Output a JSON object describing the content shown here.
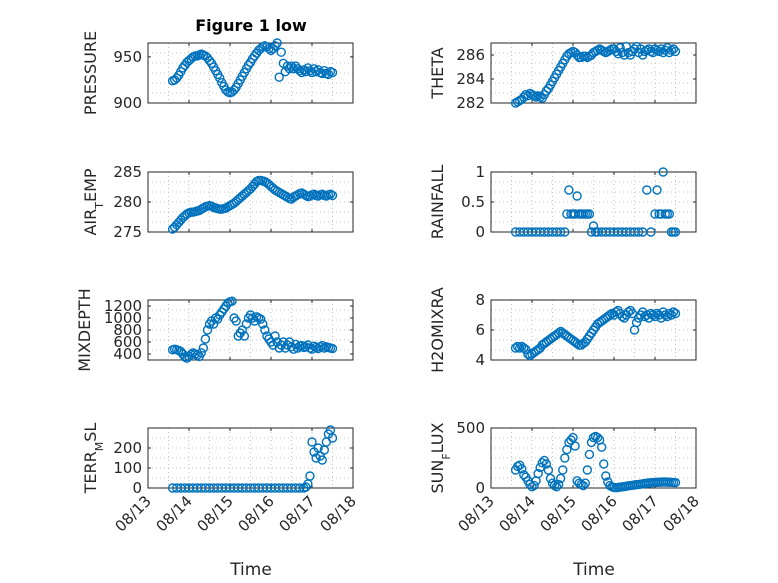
{
  "figure_title": "Figure 1 low",
  "colors": {
    "marker": "#0072bd",
    "axis": "#262626",
    "grid": "#b5b5b5"
  },
  "x_axis": {
    "label": "Time",
    "range": [
      0,
      5
    ],
    "ticks": [
      0,
      1,
      2,
      3,
      4,
      5
    ],
    "tick_labels": [
      "08/13",
      "08/14",
      "08/15",
      "08/16",
      "08/17",
      "08/18"
    ]
  },
  "chart_data": [
    {
      "type": "scatter",
      "ylabel": "PRESSURE",
      "ylim": [
        900,
        965
      ],
      "yticks": [
        900,
        950
      ],
      "ytick_labels": [
        "900",
        "950"
      ],
      "grid": true,
      "x": [
        0.6,
        0.65,
        0.7,
        0.75,
        0.8,
        0.85,
        0.9,
        0.95,
        1.0,
        1.05,
        1.1,
        1.15,
        1.2,
        1.25,
        1.3,
        1.35,
        1.4,
        1.45,
        1.5,
        1.55,
        1.6,
        1.65,
        1.7,
        1.75,
        1.8,
        1.85,
        1.9,
        1.95,
        2.0,
        2.05,
        2.1,
        2.15,
        2.2,
        2.25,
        2.3,
        2.35,
        2.4,
        2.45,
        2.5,
        2.55,
        2.6,
        2.65,
        2.7,
        2.75,
        2.8,
        2.85,
        2.9,
        2.95,
        3.0,
        3.05,
        3.1,
        3.15,
        3.2,
        3.25,
        3.3,
        3.35,
        3.4,
        3.45,
        3.5,
        3.55,
        3.6,
        3.65,
        3.7,
        3.75,
        3.8,
        3.85,
        3.9,
        3.95,
        4.0,
        4.05,
        4.1,
        4.15,
        4.2,
        4.25,
        4.3,
        4.35,
        4.4,
        4.45,
        4.5
      ],
      "y": [
        924,
        925,
        927,
        930,
        934,
        938,
        941,
        944,
        946,
        948,
        950,
        951,
        951,
        952,
        953,
        952,
        951,
        949,
        946,
        943,
        939,
        935,
        931,
        927,
        922,
        918,
        914,
        912,
        911,
        912,
        914,
        917,
        921,
        925,
        929,
        933,
        937,
        941,
        944,
        948,
        951,
        954,
        957,
        959,
        961,
        962,
        961,
        959,
        957,
        959,
        962,
        965,
        928,
        955,
        943,
        934,
        940,
        937,
        940,
        937,
        940,
        937,
        935,
        933,
        936,
        934,
        938,
        935,
        933,
        937,
        934,
        936,
        933,
        932,
        935,
        932,
        931,
        934,
        933
      ]
    },
    {
      "type": "scatter",
      "ylabel": "THETA",
      "ylim": [
        282,
        287
      ],
      "yticks": [
        282,
        284,
        286
      ],
      "ytick_labels": [
        "282",
        "284",
        "286"
      ],
      "grid": true,
      "x": [
        0.6,
        0.65,
        0.7,
        0.75,
        0.8,
        0.85,
        0.9,
        0.95,
        1.0,
        1.05,
        1.1,
        1.15,
        1.2,
        1.25,
        1.3,
        1.35,
        1.4,
        1.45,
        1.5,
        1.55,
        1.6,
        1.65,
        1.7,
        1.75,
        1.8,
        1.85,
        1.9,
        1.95,
        2.0,
        2.05,
        2.1,
        2.15,
        2.2,
        2.25,
        2.3,
        2.35,
        2.4,
        2.45,
        2.5,
        2.55,
        2.6,
        2.65,
        2.7,
        2.75,
        2.8,
        2.85,
        2.9,
        2.95,
        3.0,
        3.05,
        3.1,
        3.15,
        3.2,
        3.25,
        3.3,
        3.35,
        3.4,
        3.45,
        3.5,
        3.55,
        3.6,
        3.65,
        3.7,
        3.75,
        3.8,
        3.85,
        3.9,
        3.95,
        4.0,
        4.05,
        4.1,
        4.15,
        4.2,
        4.25,
        4.3,
        4.35,
        4.4,
        4.45,
        4.5
      ],
      "y": [
        282,
        282.1,
        282.2,
        282.3,
        282.5,
        282.7,
        282.6,
        282.8,
        282.7,
        282.6,
        282.5,
        282.6,
        282.5,
        282.4,
        282.7,
        283.0,
        283.2,
        283.5,
        283.8,
        284.1,
        284.4,
        284.7,
        285.0,
        285.3,
        285.6,
        285.9,
        286.1,
        286.2,
        286.3,
        286.2,
        286.0,
        285.8,
        285.8,
        285.9,
        285.9,
        285.8,
        285.9,
        286.0,
        286.2,
        286.3,
        286.4,
        286.5,
        286.4,
        286.3,
        286.2,
        286.3,
        286.4,
        286.5,
        286.5,
        286.3,
        286.1,
        286.6,
        286.2,
        286.0,
        286.7,
        286.2,
        286.0,
        286.3,
        286.5,
        286.7,
        286.2,
        286.5,
        286.0,
        286.3,
        286.4,
        286.5,
        286.3,
        286.2,
        286.5,
        286.4,
        286.3,
        286.5,
        286.2,
        286.4,
        286.6,
        286.2,
        286.4,
        286.5,
        286.3
      ]
    },
    {
      "type": "scatter",
      "ylabel": "AIR_TEMP",
      "ylim": [
        275,
        285
      ],
      "yticks": [
        275,
        280,
        285
      ],
      "ytick_labels": [
        "275",
        "280",
        "285"
      ],
      "grid": true,
      "x": [
        0.6,
        0.65,
        0.7,
        0.75,
        0.8,
        0.85,
        0.9,
        0.95,
        1.0,
        1.05,
        1.1,
        1.15,
        1.2,
        1.25,
        1.3,
        1.35,
        1.4,
        1.45,
        1.5,
        1.55,
        1.6,
        1.65,
        1.7,
        1.75,
        1.8,
        1.85,
        1.9,
        1.95,
        2.0,
        2.05,
        2.1,
        2.15,
        2.2,
        2.25,
        2.3,
        2.35,
        2.4,
        2.45,
        2.5,
        2.55,
        2.6,
        2.65,
        2.7,
        2.75,
        2.8,
        2.85,
        2.9,
        2.95,
        3.0,
        3.05,
        3.1,
        3.15,
        3.2,
        3.25,
        3.3,
        3.35,
        3.4,
        3.45,
        3.5,
        3.55,
        3.6,
        3.65,
        3.7,
        3.75,
        3.8,
        3.85,
        3.9,
        3.95,
        4.0,
        4.05,
        4.1,
        4.15,
        4.2,
        4.25,
        4.3,
        4.35,
        4.4,
        4.45,
        4.5
      ],
      "y": [
        275.5,
        275.8,
        276.2,
        276.6,
        277.0,
        277.4,
        277.7,
        278.0,
        278.2,
        278.3,
        278.3,
        278.4,
        278.5,
        278.6,
        278.8,
        279.0,
        279.2,
        279.3,
        279.4,
        279.3,
        279.1,
        279.0,
        278.9,
        278.8,
        278.8,
        278.9,
        279.0,
        279.2,
        279.4,
        279.6,
        279.8,
        280.1,
        280.4,
        280.7,
        281.0,
        281.3,
        281.6,
        281.9,
        282.2,
        282.6,
        283.0,
        283.4,
        283.6,
        283.6,
        283.5,
        283.4,
        283.2,
        282.9,
        282.6,
        282.3,
        282.0,
        281.8,
        281.6,
        281.4,
        281.2,
        281.0,
        280.8,
        280.6,
        280.5,
        280.8,
        281.0,
        281.2,
        281.4,
        281.5,
        281.3,
        281.1,
        280.9,
        281.0,
        281.2,
        281.3,
        281.1,
        281.0,
        281.2,
        281.3,
        281.1,
        281.0,
        281.2,
        281.3,
        281.1
      ]
    },
    {
      "type": "scatter",
      "ylabel": "RAINFALL",
      "ylim": [
        0,
        1
      ],
      "yticks": [
        0,
        0.5,
        1
      ],
      "ytick_labels": [
        "0",
        "0.5",
        "1"
      ],
      "grid": true,
      "x": [
        0.6,
        0.7,
        0.8,
        0.9,
        1.0,
        1.1,
        1.2,
        1.3,
        1.4,
        1.5,
        1.6,
        1.7,
        1.8,
        1.85,
        1.9,
        1.95,
        2.0,
        2.05,
        2.1,
        2.15,
        2.2,
        2.25,
        2.3,
        2.35,
        2.4,
        2.45,
        2.5,
        2.55,
        2.6,
        2.7,
        2.8,
        2.9,
        3.0,
        3.1,
        3.2,
        3.3,
        3.4,
        3.5,
        3.6,
        3.7,
        3.8,
        3.9,
        4.0,
        4.05,
        4.1,
        4.15,
        4.2,
        4.25,
        4.3,
        4.35,
        4.4,
        4.45,
        4.5
      ],
      "y": [
        0,
        0,
        0,
        0,
        0,
        0,
        0,
        0,
        0,
        0,
        0,
        0,
        0,
        0.3,
        0.7,
        0.3,
        0.3,
        0.3,
        0.6,
        0.3,
        0.3,
        0.3,
        0.3,
        0.3,
        0.3,
        0,
        0.1,
        0,
        0,
        0,
        0,
        0,
        0,
        0,
        0,
        0,
        0,
        0,
        0,
        0,
        0.7,
        0,
        0.3,
        0.7,
        0.3,
        0.3,
        1.0,
        0.3,
        0.3,
        0.3,
        0,
        0,
        0
      ]
    },
    {
      "type": "scatter",
      "ylabel": "MIXDEPTH",
      "ylim": [
        300,
        1300
      ],
      "yticks": [
        400,
        600,
        800,
        1000,
        1200
      ],
      "ytick_labels": [
        "400",
        "600",
        "800",
        "1000",
        "1200"
      ],
      "grid": true,
      "x": [
        0.6,
        0.65,
        0.7,
        0.75,
        0.8,
        0.85,
        0.9,
        0.95,
        1.0,
        1.05,
        1.1,
        1.15,
        1.2,
        1.25,
        1.3,
        1.35,
        1.4,
        1.45,
        1.5,
        1.55,
        1.6,
        1.65,
        1.7,
        1.75,
        1.8,
        1.85,
        1.9,
        1.95,
        2.0,
        2.05,
        2.1,
        2.15,
        2.2,
        2.25,
        2.3,
        2.35,
        2.4,
        2.45,
        2.5,
        2.55,
        2.6,
        2.65,
        2.7,
        2.75,
        2.8,
        2.85,
        2.9,
        2.95,
        3.0,
        3.05,
        3.1,
        3.15,
        3.2,
        3.25,
        3.3,
        3.35,
        3.4,
        3.45,
        3.5,
        3.55,
        3.6,
        3.65,
        3.7,
        3.75,
        3.8,
        3.85,
        3.9,
        3.95,
        4.0,
        4.05,
        4.1,
        4.15,
        4.2,
        4.25,
        4.3,
        4.35,
        4.4,
        4.45,
        4.5
      ],
      "y": [
        470,
        480,
        470,
        460,
        440,
        400,
        350,
        330,
        360,
        390,
        420,
        400,
        380,
        360,
        420,
        500,
        650,
        800,
        900,
        950,
        900,
        1000,
        980,
        1050,
        1100,
        1150,
        1200,
        1250,
        1270,
        1280,
        1000,
        950,
        700,
        750,
        800,
        700,
        900,
        1000,
        1050,
        1000,
        950,
        1020,
        1000,
        980,
        900,
        800,
        700,
        650,
        600,
        550,
        700,
        600,
        500,
        550,
        600,
        500,
        550,
        600,
        520,
        480,
        560,
        500,
        530,
        540,
        510,
        520,
        550,
        500,
        480,
        530,
        510,
        490,
        520,
        540,
        500,
        520,
        510,
        500,
        490
      ]
    },
    {
      "type": "scatter",
      "ylabel": "H2OMIXRA",
      "ylim": [
        4,
        8
      ],
      "yticks": [
        4,
        6,
        8
      ],
      "ytick_labels": [
        "4",
        "6",
        "8"
      ],
      "grid": true,
      "x": [
        0.6,
        0.65,
        0.7,
        0.75,
        0.8,
        0.85,
        0.9,
        0.95,
        1.0,
        1.05,
        1.1,
        1.15,
        1.2,
        1.25,
        1.3,
        1.35,
        1.4,
        1.45,
        1.5,
        1.55,
        1.6,
        1.65,
        1.7,
        1.75,
        1.8,
        1.85,
        1.9,
        1.95,
        2.0,
        2.05,
        2.1,
        2.15,
        2.2,
        2.25,
        2.3,
        2.35,
        2.4,
        2.45,
        2.5,
        2.55,
        2.6,
        2.65,
        2.7,
        2.75,
        2.8,
        2.85,
        2.9,
        2.95,
        3.0,
        3.05,
        3.1,
        3.15,
        3.2,
        3.25,
        3.3,
        3.35,
        3.4,
        3.45,
        3.5,
        3.55,
        3.6,
        3.65,
        3.7,
        3.75,
        3.8,
        3.85,
        3.9,
        3.95,
        4.0,
        4.05,
        4.1,
        4.15,
        4.2,
        4.25,
        4.3,
        4.35,
        4.4,
        4.45,
        4.5
      ],
      "y": [
        4.8,
        4.9,
        4.8,
        4.9,
        4.8,
        4.7,
        4.4,
        4.3,
        4.4,
        4.5,
        4.6,
        4.7,
        4.8,
        5.0,
        5.1,
        5.2,
        5.3,
        5.4,
        5.5,
        5.6,
        5.7,
        5.8,
        5.9,
        5.8,
        5.7,
        5.6,
        5.5,
        5.4,
        5.3,
        5.2,
        5.1,
        5.0,
        5.0,
        5.1,
        5.2,
        5.4,
        5.6,
        5.8,
        6.0,
        6.2,
        6.4,
        6.5,
        6.6,
        6.7,
        6.8,
        6.9,
        7.0,
        7.1,
        7.0,
        7.2,
        7.3,
        7.1,
        6.9,
        6.8,
        7.0,
        7.2,
        7.3,
        7.1,
        6.0,
        6.5,
        6.8,
        7.0,
        7.2,
        6.9,
        7.0,
        6.8,
        7.1,
        7.0,
        6.9,
        7.1,
        7.0,
        6.8,
        7.2,
        7.0,
        6.9,
        7.1,
        7.0,
        7.2,
        7.1
      ]
    },
    {
      "type": "scatter",
      "ylabel": "TERR_MSL",
      "ylim": [
        0,
        300
      ],
      "yticks": [
        0,
        100,
        200
      ],
      "ytick_labels": [
        "0",
        "100",
        "200"
      ],
      "grid": true,
      "x": [
        0.6,
        0.7,
        0.8,
        0.9,
        1.0,
        1.1,
        1.2,
        1.3,
        1.4,
        1.5,
        1.6,
        1.7,
        1.8,
        1.9,
        2.0,
        2.1,
        2.2,
        2.3,
        2.4,
        2.5,
        2.6,
        2.7,
        2.8,
        2.9,
        3.0,
        3.1,
        3.2,
        3.3,
        3.4,
        3.5,
        3.6,
        3.7,
        3.8,
        3.85,
        3.9,
        3.95,
        4.0,
        4.05,
        4.1,
        4.15,
        4.2,
        4.25,
        4.3,
        4.35,
        4.4,
        4.45,
        4.5
      ],
      "y": [
        0,
        0,
        0,
        0,
        0,
        0,
        0,
        0,
        0,
        0,
        0,
        0,
        0,
        0,
        0,
        0,
        0,
        0,
        0,
        0,
        0,
        0,
        0,
        0,
        0,
        0,
        0,
        0,
        0,
        0,
        0,
        0,
        0,
        5,
        20,
        60,
        230,
        180,
        150,
        200,
        160,
        140,
        190,
        230,
        270,
        290,
        250
      ]
    },
    {
      "type": "scatter",
      "ylabel": "SUN_FLUX",
      "ylim": [
        0,
        500
      ],
      "yticks": [
        0,
        500
      ],
      "ytick_labels": [
        "0",
        "500"
      ],
      "grid": true,
      "x": [
        0.6,
        0.65,
        0.7,
        0.75,
        0.8,
        0.85,
        0.9,
        0.95,
        1.0,
        1.05,
        1.1,
        1.15,
        1.2,
        1.25,
        1.3,
        1.35,
        1.4,
        1.45,
        1.5,
        1.55,
        1.6,
        1.65,
        1.7,
        1.75,
        1.8,
        1.85,
        1.9,
        1.95,
        2.0,
        2.05,
        2.1,
        2.15,
        2.2,
        2.25,
        2.3,
        2.35,
        2.4,
        2.45,
        2.5,
        2.55,
        2.6,
        2.65,
        2.7,
        2.75,
        2.8,
        2.85,
        2.9,
        2.95,
        3.0,
        3.05,
        3.1,
        3.15,
        3.2,
        3.25,
        3.3,
        3.35,
        3.4,
        3.45,
        3.5,
        3.55,
        3.6,
        3.65,
        3.7,
        3.75,
        3.8,
        3.85,
        3.9,
        3.95,
        4.0,
        4.05,
        4.1,
        4.15,
        4.2,
        4.25,
        4.3,
        4.35,
        4.4,
        4.45,
        4.5
      ],
      "y": [
        150,
        180,
        190,
        160,
        110,
        90,
        60,
        30,
        10,
        20,
        60,
        120,
        170,
        210,
        230,
        200,
        150,
        80,
        40,
        20,
        10,
        30,
        80,
        150,
        250,
        320,
        380,
        400,
        420,
        350,
        60,
        40,
        30,
        20,
        40,
        150,
        280,
        380,
        420,
        430,
        420,
        400,
        340,
        200,
        100,
        50,
        20,
        10,
        5,
        3,
        5,
        8,
        10,
        12,
        15,
        18,
        20,
        22,
        25,
        28,
        30,
        32,
        35,
        38,
        40,
        42,
        44,
        45,
        46,
        47,
        48,
        49,
        50,
        50,
        49,
        48,
        47,
        46,
        45
      ]
    }
  ]
}
